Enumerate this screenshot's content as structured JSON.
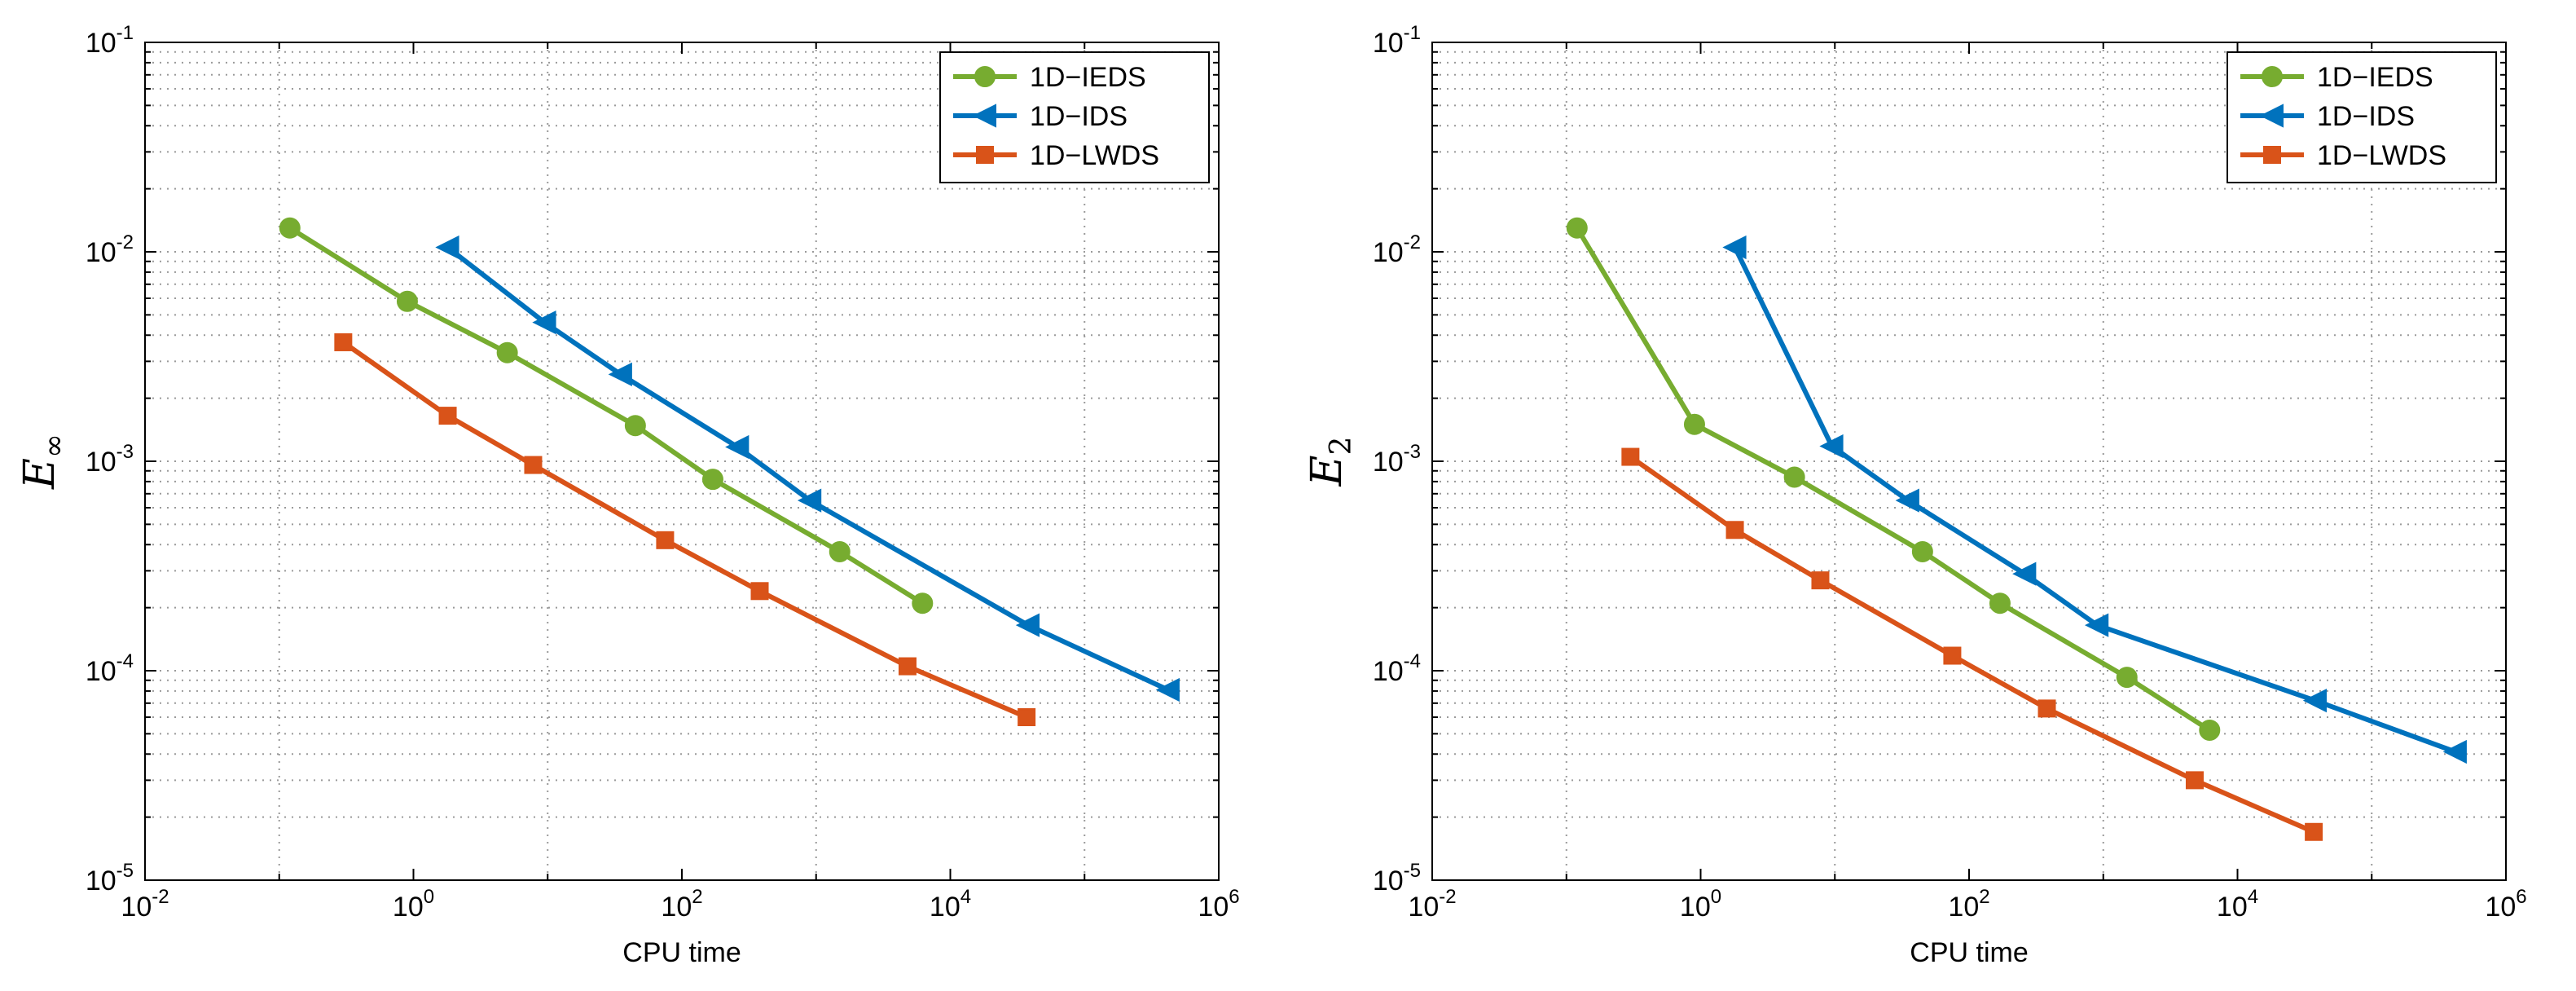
{
  "colors": {
    "ieds": "#77AC30",
    "ids": "#0072BD",
    "lwds": "#D95319",
    "grid": "#9a9a9a",
    "axis": "#000000"
  },
  "chart_data": [
    {
      "type": "line",
      "scale": "log-log",
      "title": "",
      "xlabel": "CPU time",
      "ylabel_main": "E",
      "ylabel_sub": "∞",
      "xlim": [
        0.01,
        1000000
      ],
      "ylim": [
        1e-05,
        0.1
      ],
      "x_tick_labels": [
        "10^-2",
        "10^0",
        "10^2",
        "10^4",
        "10^6"
      ],
      "y_tick_labels": [
        "10^-5",
        "10^-4",
        "10^-3",
        "10^-2",
        "10^-1"
      ],
      "grid": true,
      "legend_position": "top-right",
      "series": [
        {
          "name": "1D−IEDS",
          "key": "ieds",
          "marker": "circle",
          "x": [
            0.12,
            0.9,
            5.0,
            45,
            170,
            1500,
            6200
          ],
          "y": [
            0.013,
            0.0058,
            0.0033,
            0.00148,
            0.00082,
            0.00037,
            0.00021
          ]
        },
        {
          "name": "1D−IDS",
          "key": "ids",
          "marker": "triangle-left",
          "x": [
            1.8,
            9.5,
            35,
            260,
            900,
            38000,
            420000
          ],
          "y": [
            0.0105,
            0.0046,
            0.0026,
            0.00117,
            0.00065,
            0.000165,
            8.1e-05
          ]
        },
        {
          "name": "1D−LWDS",
          "key": "lwds",
          "marker": "square",
          "x": [
            0.3,
            1.8,
            7.8,
            75,
            380,
            4800,
            37000
          ],
          "y": [
            0.0037,
            0.00165,
            0.00096,
            0.00042,
            0.00024,
            0.000105,
            6e-05
          ]
        }
      ]
    },
    {
      "type": "line",
      "scale": "log-log",
      "title": "",
      "xlabel": "CPU time",
      "ylabel_main": "E",
      "ylabel_sub": "2",
      "xlim": [
        0.01,
        1000000
      ],
      "ylim": [
        1e-05,
        0.1
      ],
      "x_tick_labels": [
        "10^-2",
        "10^0",
        "10^2",
        "10^4",
        "10^6"
      ],
      "y_tick_labels": [
        "10^-5",
        "10^-4",
        "10^-3",
        "10^-2",
        "10^-1"
      ],
      "grid": true,
      "legend_position": "top-right",
      "series": [
        {
          "name": "1D−IEDS",
          "key": "ieds",
          "marker": "circle",
          "x": [
            0.12,
            0.9,
            5.0,
            45,
            170,
            1500,
            6200
          ],
          "y": [
            0.013,
            0.0015,
            0.00084,
            0.00037,
            0.00021,
            9.3e-05,
            5.2e-05
          ]
        },
        {
          "name": "1D−IDS",
          "key": "ids",
          "marker": "triangle-left",
          "x": [
            1.8,
            9.5,
            35,
            260,
            900,
            38000,
            420000
          ],
          "y": [
            0.0105,
            0.00118,
            0.00065,
            0.00029,
            0.000165,
            7.2e-05,
            4.1e-05
          ]
        },
        {
          "name": "1D−LWDS",
          "key": "lwds",
          "marker": "square",
          "x": [
            0.3,
            1.8,
            7.8,
            75,
            380,
            4800,
            37000
          ],
          "y": [
            0.00105,
            0.00047,
            0.00027,
            0.000118,
            6.6e-05,
            3e-05,
            1.7e-05
          ]
        }
      ]
    }
  ]
}
